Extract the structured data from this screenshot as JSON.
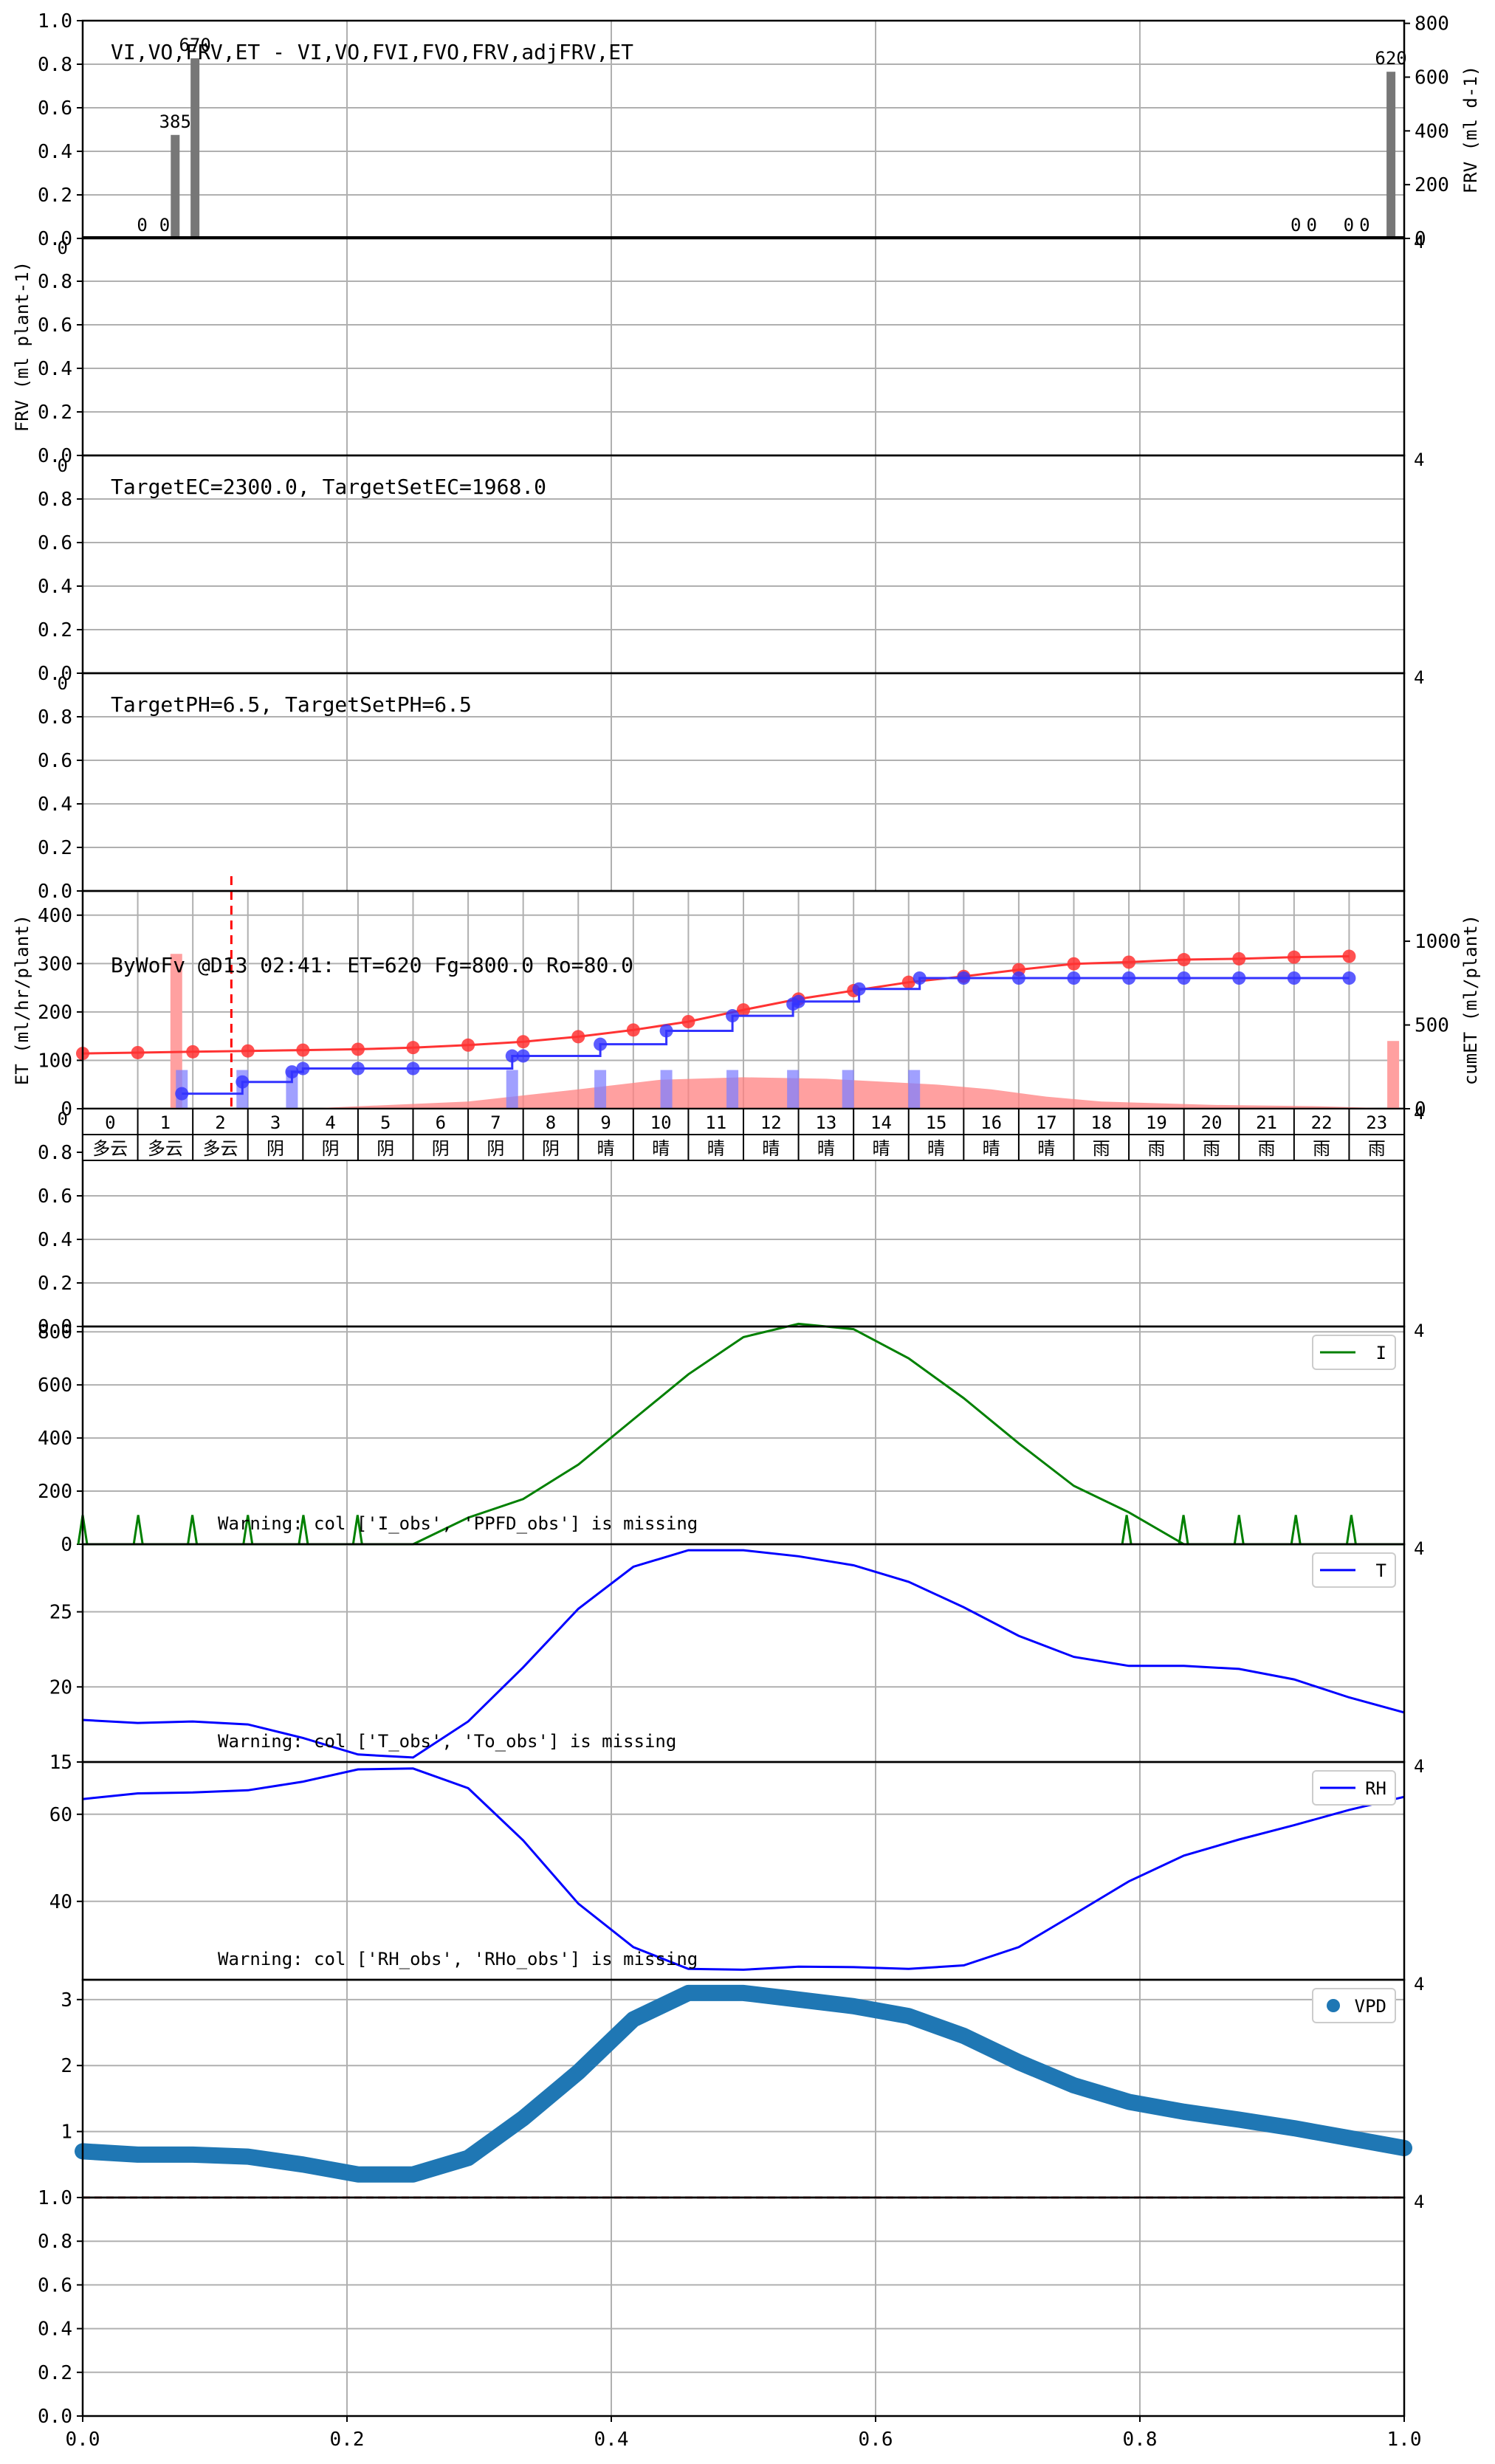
{
  "chart_data": [
    {
      "type": "bar",
      "title": "VI,VO,FRV,ET - VI,VO,FVI,FVO,FRV,adjFRV,ET",
      "ylabel_right": "FRV (ml d-1)",
      "x": [
        0.045,
        0.062,
        0.07,
        0.085,
        0.918,
        0.93,
        0.958,
        0.97,
        0.99
      ],
      "values": [
        0,
        0,
        385,
        670,
        0,
        0,
        0,
        0,
        620
      ],
      "value_labels": [
        "0",
        "0",
        "385",
        "670",
        "0",
        "0",
        "0",
        "0",
        "620"
      ],
      "xlim": [
        0,
        1
      ],
      "ylim_left": [
        0,
        1.0
      ],
      "yticks_left": [
        "0.0",
        "0.2",
        "0.4",
        "0.6",
        "0.8",
        "1.0"
      ],
      "ylim_right": [
        0,
        810
      ],
      "yticks_right": [
        "0",
        "200",
        "400",
        "600",
        "800"
      ],
      "grid": true
    },
    {
      "type": "line",
      "ylabel": "FRV (ml plant-1)",
      "series": [],
      "xlim": [
        0,
        1
      ],
      "ylim": [
        0,
        1.0
      ],
      "yticks": [
        "0.0",
        "0.2",
        "0.4",
        "0.6",
        "0.8"
      ],
      "grid": true
    },
    {
      "type": "line",
      "annotation": "TargetEC=2300.0, TargetSetEC=1968.0",
      "series": [],
      "xlim": [
        0,
        1
      ],
      "ylim": [
        0,
        1.0
      ],
      "yticks": [
        "0.0",
        "0.2",
        "0.4",
        "0.6",
        "0.8"
      ],
      "grid": true
    },
    {
      "type": "line",
      "annotation": "TargetPH=6.5, TargetSetPH=6.5",
      "series": [],
      "xlim": [
        0,
        1
      ],
      "ylim": [
        0,
        1.0
      ],
      "yticks": [
        "0.0",
        "0.2",
        "0.4",
        "0.6",
        "0.8"
      ],
      "grid": true
    },
    {
      "type": "line",
      "annotation": "ByWoFv @D13 02:41: ET=620 Fg=800.0 Ro=80.0",
      "ylabel": "ET (ml/hr/plant)",
      "ylabel_right": "cumET (ml/plant)",
      "xlim": [
        -0.5,
        23.5
      ],
      "ylim": [
        0,
        450
      ],
      "yticks": [
        "0",
        "100",
        "200",
        "300",
        "400"
      ],
      "ylim_right": [
        0,
        1300
      ],
      "yticks_right": [
        "0",
        "500",
        "1000"
      ],
      "hours": [
        "0",
        "1",
        "2",
        "3",
        "4",
        "5",
        "6",
        "7",
        "8",
        "9",
        "10",
        "11",
        "12",
        "13",
        "14",
        "15",
        "16",
        "17",
        "18",
        "19",
        "20",
        "21",
        "22",
        "23"
      ],
      "weather": [
        "多云",
        "多云",
        "多云",
        "阴",
        "阴",
        "阴",
        "阴",
        "阴",
        "阴",
        "晴",
        "晴",
        "晴",
        "晴",
        "晴",
        "晴",
        "晴",
        "晴",
        "晴",
        "雨",
        "雨",
        "雨",
        "雨",
        "雨",
        "雨"
      ],
      "series": [
        {
          "color": "#ff3333",
          "x": [
            -0.5,
            0.5,
            1.5,
            2.5,
            3.5,
            4.5,
            5.5,
            6.5,
            7.5,
            8.5,
            9.5,
            10.5,
            11.5,
            12.5,
            13.5,
            14.5,
            15.5,
            16.5,
            17.5,
            18.5,
            19.5,
            20.5,
            21.5,
            22.5
          ],
          "values": [
            330,
            335,
            340,
            345,
            350,
            355,
            365,
            380,
            400,
            430,
            470,
            520,
            590,
            655,
            705,
            755,
            790,
            830,
            865,
            875,
            890,
            895,
            905,
            910
          ]
        },
        {
          "color": "#3333ff",
          "x": [
            1.3,
            2.4,
            3.3,
            3.5,
            4.5,
            5.5,
            7.3,
            7.5,
            8.9,
            10.1,
            11.3,
            12.4,
            12.5,
            13.6,
            14.7,
            15.5,
            16.5,
            17.5,
            18.5,
            19.5,
            20.5,
            21.5,
            22.5
          ],
          "values": [
            90,
            160,
            220,
            240,
            240,
            240,
            315,
            315,
            385,
            465,
            555,
            625,
            640,
            715,
            780,
            780,
            780,
            780,
            780,
            780,
            780,
            780,
            780
          ]
        }
      ],
      "bars": [
        {
          "hour": 1.3,
          "value": 80
        },
        {
          "hour": 2.4,
          "value": 80
        },
        {
          "hour": 3.3,
          "value": 80
        },
        {
          "hour": 7.3,
          "value": 80
        },
        {
          "hour": 8.9,
          "value": 80
        },
        {
          "hour": 10.1,
          "value": 80
        },
        {
          "hour": 11.3,
          "value": 80
        },
        {
          "hour": 12.4,
          "value": 80
        },
        {
          "hour": 13.4,
          "value": 80
        },
        {
          "hour": 14.6,
          "value": 80
        }
      ],
      "et_area": [
        [
          -0.5,
          0
        ],
        [
          3.5,
          0
        ],
        [
          6.5,
          15
        ],
        [
          8.5,
          40
        ],
        [
          10,
          60
        ],
        [
          11.5,
          65
        ],
        [
          13,
          62
        ],
        [
          15,
          50
        ],
        [
          16,
          40
        ],
        [
          17,
          25
        ],
        [
          18,
          15
        ],
        [
          20,
          8
        ],
        [
          22,
          5
        ],
        [
          23.5,
          0
        ]
      ],
      "pink_bars": [
        {
          "hour": 1.2,
          "value": 320
        },
        {
          "hour": 23.3,
          "value": 140
        }
      ],
      "marker_hour": 2.2,
      "grid": true
    },
    {
      "type": "line",
      "series": [],
      "xlim": [
        0,
        1
      ],
      "ylim": [
        0,
        1.0
      ],
      "yticks": [
        "0.0",
        "0.2",
        "0.4",
        "0.6",
        "0.8"
      ],
      "grid": true
    },
    {
      "type": "line",
      "annotation": "Warning: col ['I_obs', 'PPFD_obs'] is missing",
      "legend": "I",
      "legend_position": "top-right",
      "series": [
        {
          "name": "I",
          "color": "#008000",
          "x": [
            0,
            0.0417,
            0.0833,
            0.125,
            0.1667,
            0.2083,
            0.25,
            0.2917,
            0.3333,
            0.375,
            0.4167,
            0.4583,
            0.5,
            0.5417,
            0.5833,
            0.625,
            0.6667,
            0.7083,
            0.75,
            0.7917,
            0.8333,
            0.875,
            0.9167,
            0.9583,
            1.0
          ],
          "values": [
            0,
            0,
            0,
            0,
            0,
            0,
            0,
            100,
            170,
            300,
            470,
            640,
            780,
            830,
            810,
            700,
            550,
            380,
            220,
            120,
            0,
            0,
            0,
            0,
            0
          ]
        }
      ],
      "spikes_x": [
        0.0,
        0.042,
        0.083,
        0.125,
        0.167,
        0.208,
        0.79,
        0.833,
        0.875,
        0.918,
        0.96
      ],
      "spike_value": 110,
      "xlim": [
        0,
        1
      ],
      "ylim": [
        0,
        820
      ],
      "yticks": [
        "0",
        "200",
        "400",
        "600",
        "800"
      ],
      "grid": true
    },
    {
      "type": "line",
      "annotation": "Warning: col ['T_obs', 'To_obs'] is missing",
      "legend": "T",
      "legend_position": "top-right",
      "series": [
        {
          "name": "T",
          "color": "#0000ff",
          "x": [
            0,
            0.0417,
            0.0833,
            0.125,
            0.1667,
            0.2083,
            0.25,
            0.2917,
            0.3333,
            0.375,
            0.4167,
            0.4583,
            0.5,
            0.5417,
            0.5833,
            0.625,
            0.6667,
            0.7083,
            0.75,
            0.7917,
            0.8333,
            0.875,
            0.9167,
            0.9583,
            1.0
          ],
          "values": [
            17.8,
            17.6,
            17.7,
            17.5,
            16.6,
            15.5,
            15.3,
            17.7,
            21.3,
            25.2,
            28.0,
            29.1,
            29.1,
            28.7,
            28.1,
            27.0,
            25.3,
            23.4,
            22.0,
            21.4,
            21.4,
            21.2,
            20.5,
            19.3,
            18.3
          ]
        }
      ],
      "xlim": [
        0,
        1
      ],
      "ylim": [
        15,
        29.5
      ],
      "yticks": [
        "15",
        "20",
        "25"
      ],
      "grid": true
    },
    {
      "type": "line",
      "annotation": "Warning: col ['RH_obs', 'RHo_obs'] is missing",
      "legend": "RH",
      "legend_position": "top-right",
      "series": [
        {
          "name": "RH",
          "color": "#0000ff",
          "x": [
            0,
            0.0417,
            0.0833,
            0.125,
            0.1667,
            0.2083,
            0.25,
            0.2917,
            0.3333,
            0.375,
            0.4167,
            0.4583,
            0.5,
            0.5417,
            0.5833,
            0.625,
            0.6667,
            0.7083,
            0.75,
            0.7917,
            0.8333,
            0.875,
            0.9167,
            0.9583,
            1.0
          ],
          "values": [
            63.5,
            64.8,
            65.0,
            65.5,
            67.5,
            70.3,
            70.5,
            66.0,
            54.0,
            39.5,
            29.5,
            24.5,
            24.3,
            25.0,
            24.9,
            24.5,
            25.3,
            29.5,
            37.0,
            44.6,
            50.5,
            54.2,
            57.5,
            61.0,
            64.0
          ]
        }
      ],
      "xlim": [
        0,
        1
      ],
      "ylim": [
        22,
        72
      ],
      "yticks": [
        "40",
        "60"
      ],
      "grid": true
    },
    {
      "type": "scatter",
      "legend": "VPD",
      "legend_position": "top-right",
      "series": [
        {
          "name": "VPD",
          "color": "#1f77b4",
          "x": [
            0,
            0.0417,
            0.0833,
            0.125,
            0.1667,
            0.2083,
            0.25,
            0.2917,
            0.3333,
            0.375,
            0.4167,
            0.4583,
            0.5,
            0.5417,
            0.5833,
            0.625,
            0.6667,
            0.7083,
            0.75,
            0.7917,
            0.8333,
            0.875,
            0.9167,
            0.9583,
            1.0
          ],
          "values": [
            0.7,
            0.65,
            0.65,
            0.62,
            0.5,
            0.35,
            0.35,
            0.6,
            1.2,
            1.9,
            2.7,
            3.1,
            3.1,
            3.0,
            2.9,
            2.75,
            2.45,
            2.05,
            1.7,
            1.45,
            1.3,
            1.18,
            1.05,
            0.9,
            0.75
          ]
        }
      ],
      "reference_line": 0,
      "xlim": [
        0,
        1
      ],
      "ylim": [
        0,
        3.3
      ],
      "yticks": [
        "1",
        "2",
        "3"
      ],
      "grid": true
    },
    {
      "type": "line",
      "series": [],
      "xlim": [
        0,
        1
      ],
      "ylim": [
        0,
        1.0
      ],
      "yticks": [
        "0.0",
        "0.2",
        "0.4",
        "0.6",
        "0.8",
        "1.0"
      ],
      "xticks": [
        "0.0",
        "0.2",
        "0.4",
        "0.6",
        "0.8",
        "1.0"
      ],
      "grid": true
    }
  ],
  "right_tick_fragment": "4",
  "left_tick_fragment": "0"
}
